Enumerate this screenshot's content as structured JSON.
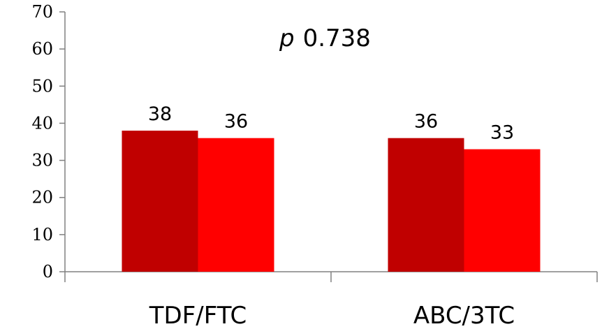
{
  "chart_data": {
    "type": "bar",
    "categories": [
      "TDF/FTC",
      "ABC/3TC"
    ],
    "series": [
      {
        "values": [
          38,
          36
        ],
        "color": "#c00000"
      },
      {
        "values": [
          36,
          33
        ],
        "color": "#ff0000"
      }
    ],
    "ylim": [
      0,
      70
    ],
    "yticks": [
      0,
      10,
      20,
      30,
      40,
      50,
      60,
      70
    ],
    "annotation": {
      "p_symbol": "p",
      "p_value": "0.738"
    },
    "grid": false,
    "legend": "none"
  }
}
